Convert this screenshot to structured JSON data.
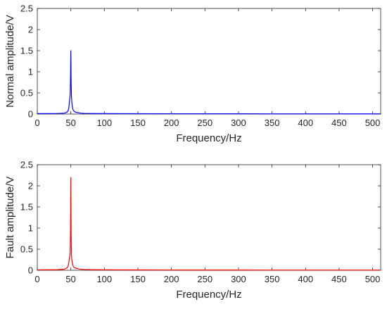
{
  "chart_data": [
    {
      "type": "line",
      "title": "",
      "xlabel": "Frequency/Hz",
      "ylabel": "Normal amplitude/V",
      "xlim": [
        0,
        512
      ],
      "ylim": [
        0,
        2.5
      ],
      "xticks": [
        0,
        50,
        100,
        150,
        200,
        250,
        300,
        350,
        400,
        450,
        500
      ],
      "yticks": [
        0,
        0.5,
        1,
        1.5,
        2,
        2.5
      ],
      "grid": false,
      "color": "#0000ff",
      "series": [
        {
          "name": "",
          "x": [
            0,
            10,
            20,
            30,
            40,
            44,
            46,
            47,
            48,
            49,
            49.5,
            50,
            50.5,
            51,
            52,
            53,
            54,
            56,
            58,
            60,
            62,
            65,
            70,
            80,
            100,
            150,
            200,
            250,
            300,
            350,
            400,
            450,
            500,
            512
          ],
          "y": [
            0.01,
            0.01,
            0.01,
            0.012,
            0.02,
            0.04,
            0.08,
            0.15,
            0.3,
            0.45,
            0.8,
            1.5,
            0.7,
            0.4,
            0.2,
            0.12,
            0.08,
            0.05,
            0.04,
            0.035,
            0.03,
            0.02,
            0.015,
            0.012,
            0.01,
            0.008,
            0.007,
            0.006,
            0.006,
            0.005,
            0.005,
            0.005,
            0.004,
            0.004
          ]
        }
      ]
    },
    {
      "type": "line",
      "title": "",
      "xlabel": "Frequency/Hz",
      "ylabel": "Fault amplitude/V",
      "xlim": [
        0,
        512
      ],
      "ylim": [
        0,
        2.5
      ],
      "xticks": [
        0,
        50,
        100,
        150,
        200,
        250,
        300,
        350,
        400,
        450,
        500
      ],
      "yticks": [
        0,
        0.5,
        1,
        1.5,
        2,
        2.5
      ],
      "grid": false,
      "color": "#ff0000",
      "series": [
        {
          "name": "",
          "x": [
            0,
            10,
            20,
            30,
            40,
            44,
            46,
            47,
            48,
            49,
            49.5,
            50,
            50.5,
            51,
            52,
            53,
            54,
            56,
            58,
            60,
            62,
            65,
            70,
            80,
            100,
            150,
            200,
            250,
            300,
            350,
            400,
            450,
            500,
            512
          ],
          "y": [
            0.01,
            0.01,
            0.012,
            0.015,
            0.025,
            0.05,
            0.1,
            0.18,
            0.3,
            0.4,
            0.9,
            2.2,
            0.8,
            0.35,
            0.18,
            0.12,
            0.08,
            0.06,
            0.05,
            0.04,
            0.03,
            0.025,
            0.02,
            0.015,
            0.01,
            0.008,
            0.007,
            0.006,
            0.006,
            0.005,
            0.005,
            0.005,
            0.004,
            0.004
          ]
        }
      ]
    }
  ]
}
